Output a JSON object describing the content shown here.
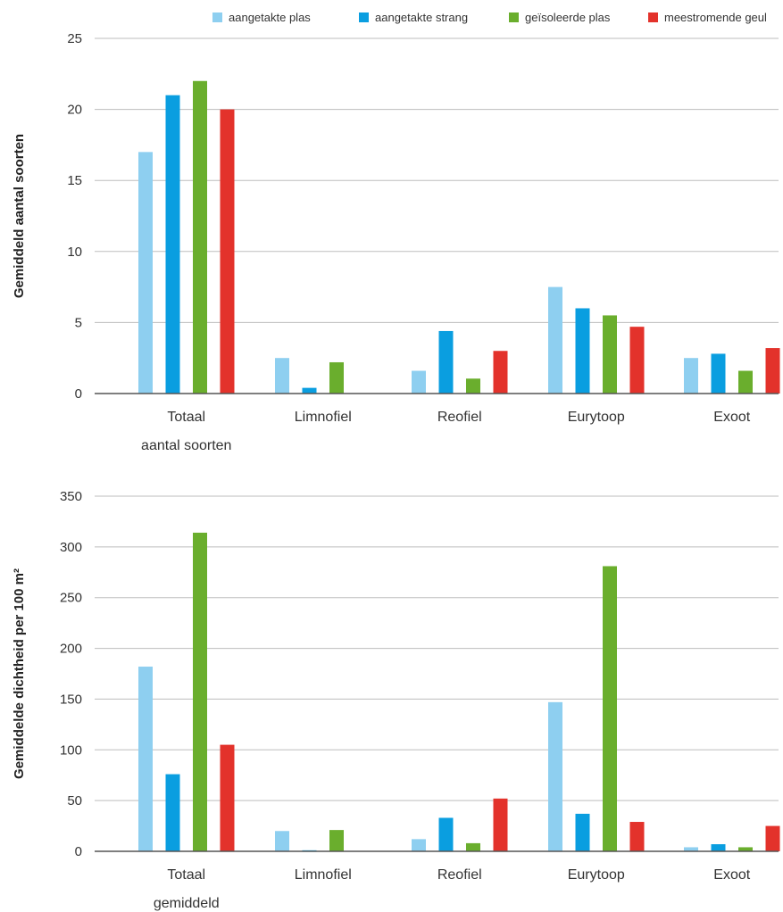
{
  "legend": [
    {
      "label": "aangetakte plas",
      "color": "#8ecff0"
    },
    {
      "label": "aangetakte strang",
      "color": "#0a9ee0"
    },
    {
      "label": "geïsoleerde plas",
      "color": "#6aae2d"
    },
    {
      "label": "meestromende geul",
      "color": "#e3322b"
    }
  ],
  "chart_data": [
    {
      "type": "bar",
      "ylabel": "Gemiddeld aantal soorten",
      "ylim": [
        0,
        25
      ],
      "yticks": [
        0,
        5,
        10,
        15,
        20,
        25
      ],
      "grid": true,
      "categories": [
        [
          "Totaal",
          "aantal soorten"
        ],
        [
          "Limnofiel"
        ],
        [
          "Reofiel"
        ],
        [
          "Eurytoop"
        ],
        [
          "Exoot"
        ]
      ],
      "series": [
        {
          "name": "aangetakte plas",
          "color": "#8ecff0",
          "values": [
            17,
            2.5,
            1.6,
            7.5,
            2.5
          ]
        },
        {
          "name": "aangetakte strang",
          "color": "#0a9ee0",
          "values": [
            21,
            0.4,
            4.4,
            6,
            2.8
          ]
        },
        {
          "name": "geïsoleerde plas",
          "color": "#6aae2d",
          "values": [
            22,
            2.2,
            1.05,
            5.5,
            1.6
          ]
        },
        {
          "name": "meestromende geul",
          "color": "#e3322b",
          "values": [
            20,
            0,
            3,
            4.7,
            3.2
          ]
        }
      ]
    },
    {
      "type": "bar",
      "ylabel": "Gemiddelde dichtheid per 100 m²",
      "ylim": [
        0,
        350
      ],
      "yticks": [
        0,
        50,
        100,
        150,
        200,
        250,
        300,
        350
      ],
      "grid": true,
      "categories": [
        [
          "Totaal",
          "gemiddeld"
        ],
        [
          "Limnofiel"
        ],
        [
          "Reofiel"
        ],
        [
          "Eurytoop"
        ],
        [
          "Exoot"
        ]
      ],
      "series": [
        {
          "name": "aangetakte plas",
          "color": "#8ecff0",
          "values": [
            182,
            20,
            12,
            147,
            4
          ]
        },
        {
          "name": "aangetakte strang",
          "color": "#0a9ee0",
          "values": [
            76,
            1,
            33,
            37,
            7
          ]
        },
        {
          "name": "geïsoleerde plas",
          "color": "#6aae2d",
          "values": [
            314,
            21,
            8,
            281,
            4
          ]
        },
        {
          "name": "meestromende geul",
          "color": "#e3322b",
          "values": [
            105,
            0,
            52,
            29,
            25
          ]
        }
      ]
    }
  ]
}
